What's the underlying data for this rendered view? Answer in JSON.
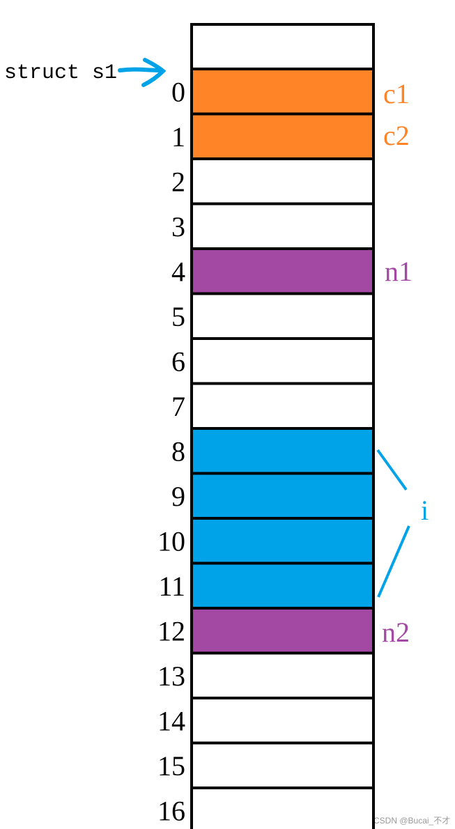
{
  "struct_label": "struct s1",
  "cells": [
    {
      "index": "0",
      "color": "#ff8427"
    },
    {
      "index": "1",
      "color": "#ff8427"
    },
    {
      "index": "2"
    },
    {
      "index": "3"
    },
    {
      "index": "4",
      "color": "#a349a4"
    },
    {
      "index": "5"
    },
    {
      "index": "6"
    },
    {
      "index": "7"
    },
    {
      "index": "8",
      "color": "#00a2e8"
    },
    {
      "index": "9",
      "color": "#00a2e8"
    },
    {
      "index": "10",
      "color": "#00a2e8"
    },
    {
      "index": "11",
      "color": "#00a2e8"
    },
    {
      "index": "12",
      "color": "#a349a4"
    },
    {
      "index": "13"
    },
    {
      "index": "14"
    },
    {
      "index": "15"
    },
    {
      "index": "16"
    }
  ],
  "members": [
    {
      "label": "c1",
      "color": "#ff8427"
    },
    {
      "label": "c2",
      "color": "#ff8427"
    },
    {
      "label": "n1",
      "color": "#a349a4"
    },
    {
      "label": "i",
      "color": "#00a2e8"
    },
    {
      "label": "n2",
      "color": "#a349a4"
    }
  ],
  "watermark": "CSDN @Bucai_不才"
}
